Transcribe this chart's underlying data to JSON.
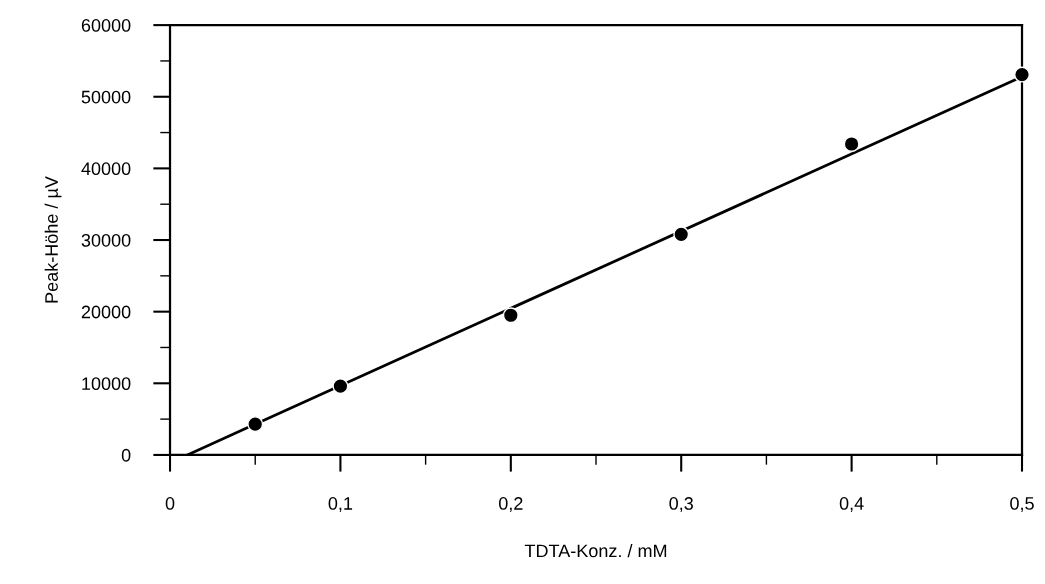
{
  "chart_data": {
    "type": "scatter",
    "xlabel": "TDTA-Konz. / mM",
    "ylabel": "Peak-Höhe / µV",
    "x": [
      0.05,
      0.1,
      0.2,
      0.3,
      0.4,
      0.5
    ],
    "series": [
      {
        "color": "#000000",
        "marker": "circle",
        "values": [
          4300,
          9600,
          19500,
          30800,
          43400,
          53100
        ]
      },
      {
        "type": "line",
        "color": "#000000",
        "marker": "none",
        "line_style": "solid",
        "x": [
          0.0102,
          0.5
        ],
        "values": [
          0,
          52800
        ]
      }
    ],
    "xlim": [
      0,
      0.5
    ],
    "ylim": [
      0,
      60000
    ],
    "xticks": [
      {
        "value": 0,
        "label": "0"
      },
      {
        "value": 0.05,
        "label": null
      },
      {
        "value": 0.1,
        "label": "0,1"
      },
      {
        "value": 0.15,
        "label": null
      },
      {
        "value": 0.2,
        "label": "0,2"
      },
      {
        "value": 0.25,
        "label": null
      },
      {
        "value": 0.3,
        "label": "0,3"
      },
      {
        "value": 0.35,
        "label": null
      },
      {
        "value": 0.4,
        "label": "0,4"
      },
      {
        "value": 0.45,
        "label": null
      },
      {
        "value": 0.5,
        "label": "0,5"
      }
    ],
    "yticks": [
      0,
      {
        "value": 5000,
        "label": null
      },
      10000,
      {
        "value": 15000,
        "label": null
      },
      20000,
      {
        "value": 25000,
        "label": null
      },
      30000,
      {
        "value": 35000,
        "label": null
      },
      40000,
      {
        "value": 45000,
        "label": null
      },
      50000,
      {
        "value": 55000,
        "label": null
      },
      60000
    ],
    "grid": false,
    "legend": false
  }
}
